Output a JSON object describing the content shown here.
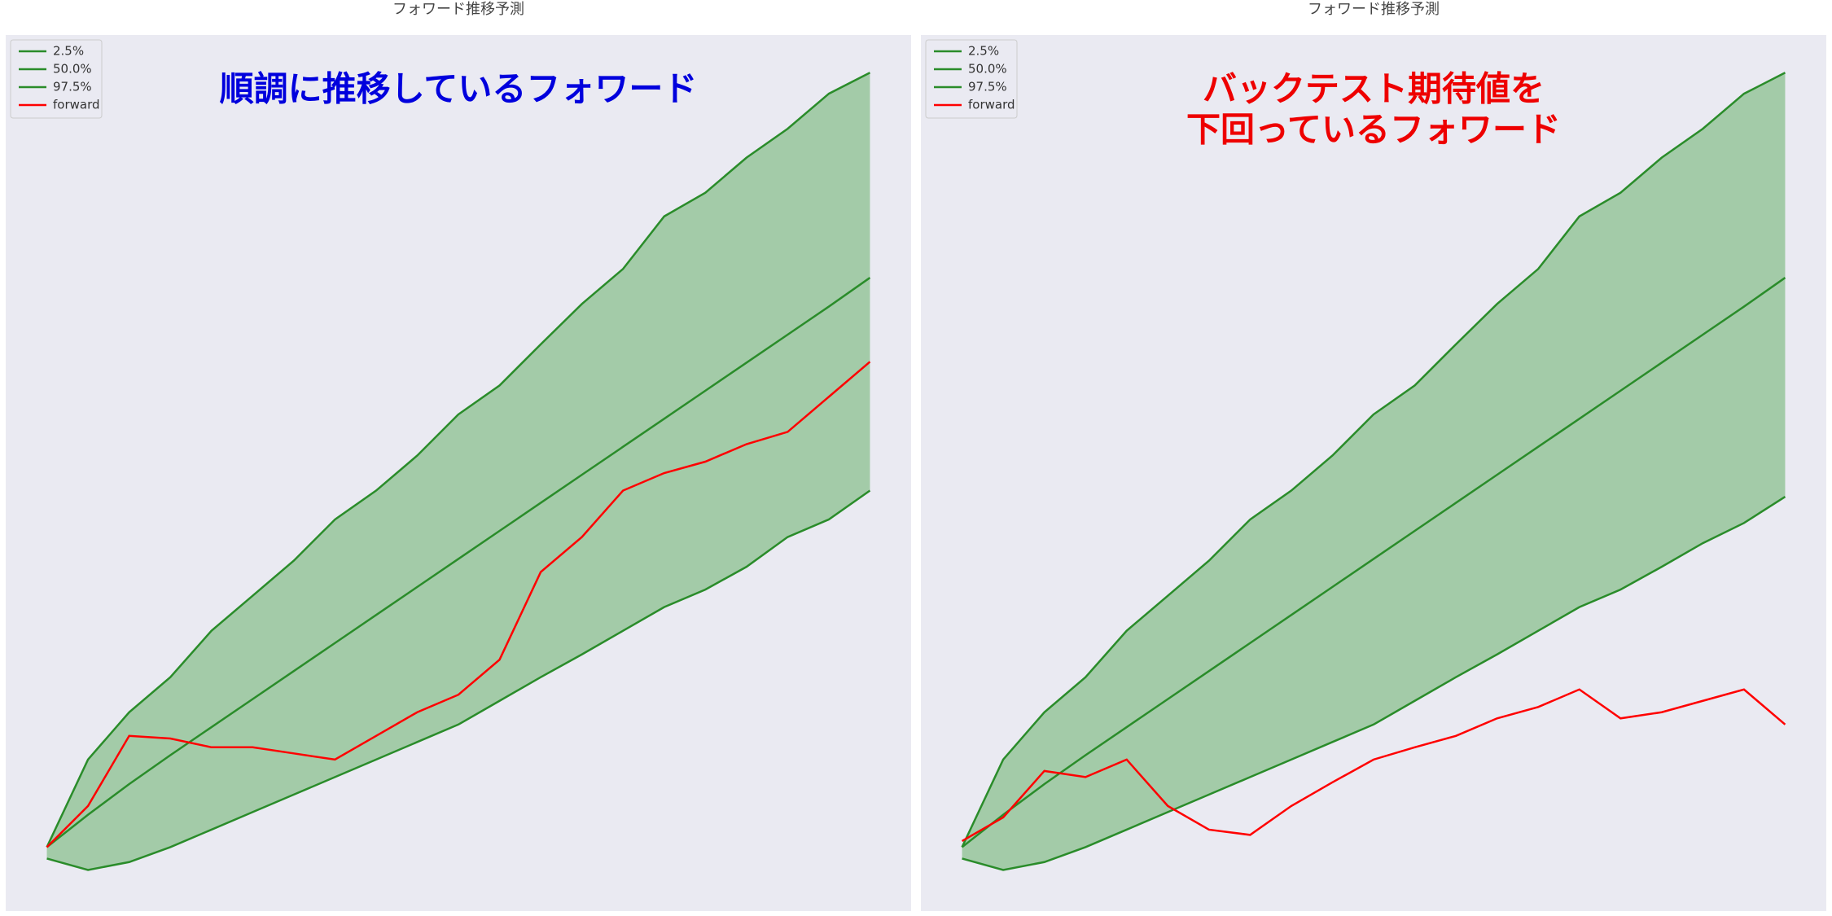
{
  "chart_data": [
    {
      "type": "line",
      "title": "フォワード推移予測",
      "annotation": [
        "順調に推移しているフォワード"
      ],
      "annotation_color": "#0000dd",
      "legend": "upper left",
      "fill_color": "#a3cba8",
      "xlim": [
        -5,
        105
      ],
      "ylim": [
        0,
        100
      ],
      "x": [
        0,
        5,
        10,
        15,
        20,
        25,
        30,
        35,
        40,
        45,
        50,
        55,
        60,
        65,
        70,
        75,
        80,
        85,
        90,
        95,
        100
      ],
      "series": [
        {
          "name": "2.5%",
          "color": "#2a8c2a",
          "values": [
            6,
            4.7,
            5.6,
            7.3,
            9.3,
            11.3,
            13.3,
            15.3,
            17.3,
            19.3,
            21.3,
            24,
            26.7,
            29.3,
            32,
            34.7,
            36.7,
            39.3,
            42.7,
            44.7,
            48
          ]
        },
        {
          "name": "50.0%",
          "color": "#2a8c2a",
          "values": [
            7.3,
            11,
            14.5,
            17.8,
            21,
            24.2,
            27.4,
            30.6,
            33.8,
            37,
            40.2,
            43.4,
            46.6,
            49.8,
            53,
            56.2,
            59.4,
            62.6,
            65.8,
            69,
            72.3
          ]
        },
        {
          "name": "97.5%",
          "color": "#2a8c2a",
          "values": [
            7.3,
            17.3,
            22.7,
            26.7,
            32,
            36,
            40,
            44.7,
            48,
            52,
            56.7,
            60,
            64.7,
            69.3,
            73.3,
            79.3,
            82,
            86,
            89.3,
            93.3,
            95.7
          ]
        },
        {
          "name": "forward",
          "color": "#ff0000",
          "values": [
            7.3,
            12,
            20,
            19.7,
            18.7,
            18.7,
            18,
            17.3,
            20,
            22.7,
            24.7,
            28.7,
            38.7,
            42.7,
            48,
            50,
            51.3,
            53.3,
            54.7,
            58.7,
            62.7
          ]
        }
      ]
    },
    {
      "type": "line",
      "title": "フォワード推移予測",
      "annotation": [
        "バックテスト期待値を",
        "下回っているフォワード"
      ],
      "annotation_color": "#ee0000",
      "legend": "upper left",
      "fill_color": "#a3cba8",
      "xlim": [
        -5,
        105
      ],
      "ylim": [
        0,
        100
      ],
      "x": [
        0,
        5,
        10,
        15,
        20,
        25,
        30,
        35,
        40,
        45,
        50,
        55,
        60,
        65,
        70,
        75,
        80,
        85,
        90,
        95,
        100
      ],
      "series": [
        {
          "name": "2.5%",
          "color": "#2a8c2a",
          "values": [
            6,
            4.7,
            5.6,
            7.3,
            9.3,
            11.3,
            13.3,
            15.3,
            17.3,
            19.3,
            21.3,
            24,
            26.7,
            29.3,
            32,
            34.7,
            36.7,
            39.3,
            42,
            44.3,
            47.3
          ]
        },
        {
          "name": "50.0%",
          "color": "#2a8c2a",
          "values": [
            7.3,
            11,
            14.5,
            17.8,
            21,
            24.2,
            27.4,
            30.6,
            33.8,
            37,
            40.2,
            43.4,
            46.6,
            49.8,
            53,
            56.2,
            59.4,
            62.6,
            65.8,
            69,
            72.3
          ]
        },
        {
          "name": "97.5%",
          "color": "#2a8c2a",
          "values": [
            7.3,
            17.3,
            22.7,
            26.7,
            32,
            36,
            40,
            44.7,
            48,
            52,
            56.7,
            60,
            64.7,
            69.3,
            73.3,
            79.3,
            82,
            86,
            89.3,
            93.3,
            95.7
          ]
        },
        {
          "name": "forward",
          "color": "#ff0000",
          "values": [
            8,
            10.7,
            16,
            15.3,
            17.3,
            12,
            9.3,
            8.7,
            12,
            14.7,
            17.3,
            18.7,
            20,
            22,
            23.3,
            25.3,
            22,
            22.7,
            24,
            25.3,
            21.3
          ]
        }
      ]
    }
  ]
}
